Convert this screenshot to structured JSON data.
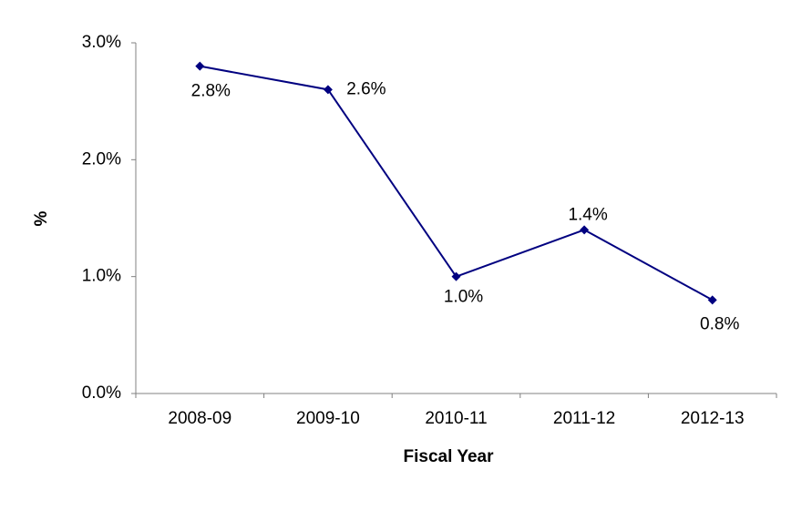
{
  "chart_data": {
    "type": "line",
    "x_label": "Fiscal Year",
    "y_label": "%",
    "categories": [
      "2008-09",
      "2009-10",
      "2010-11",
      "2011-12",
      "2012-13"
    ],
    "series": [
      {
        "name": "%",
        "color": "#000080",
        "values": [
          2.8,
          2.6,
          1.0,
          1.4,
          0.8
        ],
        "value_labels": [
          "2.8%",
          "2.6%",
          "1.0%",
          "1.4%",
          "0.8%"
        ]
      }
    ],
    "ylim": [
      0,
      3
    ],
    "yticks": [
      {
        "value": 0,
        "label": "0.0%"
      },
      {
        "value": 1,
        "label": "1.0%"
      },
      {
        "value": 2,
        "label": "2.0%"
      },
      {
        "value": 3,
        "label": "3.0%"
      }
    ],
    "grid": false
  }
}
